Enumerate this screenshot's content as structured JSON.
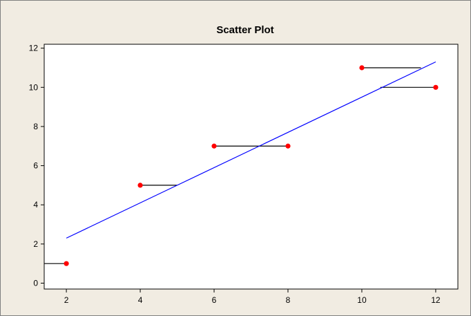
{
  "chart_data": {
    "type": "scatter",
    "title": "Scatter Plot",
    "xlabel": "",
    "ylabel": "",
    "xlim": [
      1.4,
      12.6
    ],
    "ylim": [
      -0.3,
      12.2
    ],
    "x_ticks": [
      2,
      4,
      6,
      8,
      10,
      12
    ],
    "y_ticks": [
      0,
      2,
      4,
      6,
      8,
      10,
      12
    ],
    "grid": false,
    "points": [
      {
        "x": 2,
        "y": 1
      },
      {
        "x": 4,
        "y": 5
      },
      {
        "x": 6,
        "y": 7
      },
      {
        "x": 8,
        "y": 7
      },
      {
        "x": 10,
        "y": 11
      },
      {
        "x": 12,
        "y": 10
      }
    ],
    "fit_line": {
      "x0": 2,
      "y0": 2.3,
      "x1": 12,
      "y1": 11.3
    },
    "residual_segments": [
      {
        "x_from": 2,
        "x_to": 1.4,
        "y": 1
      },
      {
        "x_from": 4,
        "x_to": 5,
        "y": 5
      },
      {
        "x_from": 6,
        "x_to": 7.2,
        "y": 7
      },
      {
        "x_from": 8,
        "x_to": 7.2,
        "y": 7
      },
      {
        "x_from": 10,
        "x_to": 11.6,
        "y": 11
      },
      {
        "x_from": 12,
        "x_to": 10.5,
        "y": 10
      }
    ],
    "colors": {
      "background": "#F1ECE2",
      "plot_area": "#FFFFFF",
      "points": "#FF0000",
      "fit_line": "#0000FF",
      "segments": "#000000",
      "axis": "#000000"
    }
  }
}
